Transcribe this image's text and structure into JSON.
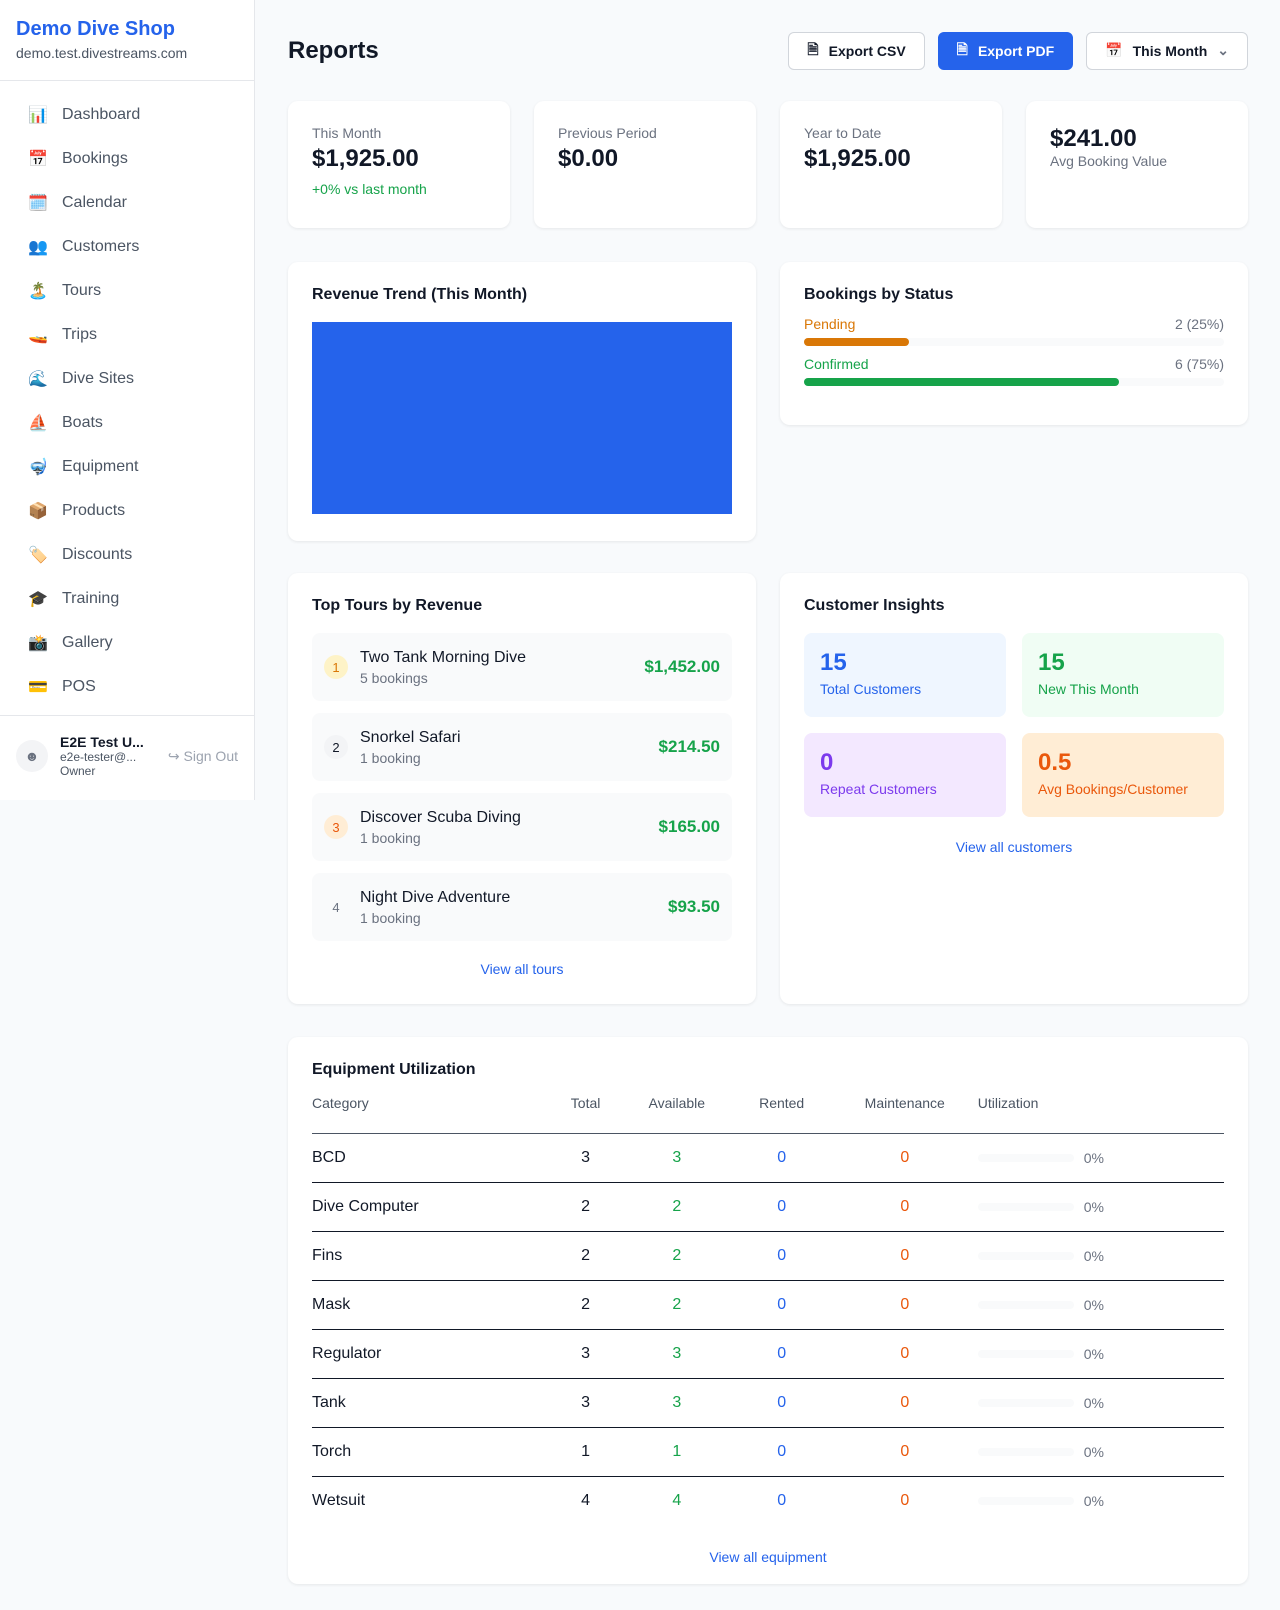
{
  "sidebar": {
    "shop_name": "Demo Dive Shop",
    "shop_url": "demo.test.divestreams.com",
    "items": [
      {
        "icon": "📊",
        "label": "Dashboard"
      },
      {
        "icon": "📅",
        "label": "Bookings"
      },
      {
        "icon": "🗓️",
        "label": "Calendar"
      },
      {
        "icon": "👥",
        "label": "Customers"
      },
      {
        "icon": "🏝️",
        "label": "Tours"
      },
      {
        "icon": "🚤",
        "label": "Trips"
      },
      {
        "icon": "🌊",
        "label": "Dive Sites"
      },
      {
        "icon": "⛵",
        "label": "Boats"
      },
      {
        "icon": "🤿",
        "label": "Equipment"
      },
      {
        "icon": "📦",
        "label": "Products"
      },
      {
        "icon": "🏷️",
        "label": "Discounts"
      },
      {
        "icon": "🎓",
        "label": "Training"
      },
      {
        "icon": "📸",
        "label": "Gallery"
      },
      {
        "icon": "💳",
        "label": "POS"
      }
    ],
    "user": {
      "name": "E2E Test U...",
      "email": "e2e-tester@...",
      "role": "Owner",
      "sign_out": "Sign Out"
    }
  },
  "header": {
    "title": "Reports",
    "export_csv": "Export CSV",
    "export_pdf": "Export PDF",
    "period": "This Month"
  },
  "stats": [
    {
      "label": "This Month",
      "value": "$1,925.00",
      "delta": "+0% vs last month"
    },
    {
      "label": "Previous Period",
      "value": "$0.00"
    },
    {
      "label": "Year to Date",
      "value": "$1,925.00"
    },
    {
      "value": "$241.00",
      "label": "Avg Booking Value"
    }
  ],
  "revenue_trend": {
    "title": "Revenue Trend (This Month)",
    "color": "#2563eb"
  },
  "bookings_status": {
    "title": "Bookings by Status",
    "items": [
      {
        "label": "Pending",
        "count": "2 (25%)",
        "percent": 25,
        "color": "#d97706"
      },
      {
        "label": "Confirmed",
        "count": "6 (75%)",
        "percent": 75,
        "color": "#16a34a"
      }
    ]
  },
  "top_tours": {
    "title": "Top Tours by Revenue",
    "items": [
      {
        "rank": "1",
        "name": "Two Tank Morning Dive",
        "bookings": "5 bookings",
        "revenue": "$1,452.00"
      },
      {
        "rank": "2",
        "name": "Snorkel Safari",
        "bookings": "1 booking",
        "revenue": "$214.50"
      },
      {
        "rank": "3",
        "name": "Discover Scuba Diving",
        "bookings": "1 booking",
        "revenue": "$165.00"
      },
      {
        "rank": "4",
        "name": "Night Dive Adventure",
        "bookings": "1 booking",
        "revenue": "$93.50"
      }
    ],
    "view_all": "View all tours"
  },
  "customer_insights": {
    "title": "Customer Insights",
    "items": [
      {
        "value": "15",
        "label": "Total Customers"
      },
      {
        "value": "15",
        "label": "New This Month"
      },
      {
        "value": "0",
        "label": "Repeat Customers"
      },
      {
        "value": "0.5",
        "label": "Avg Bookings/Customer"
      }
    ],
    "view_all": "View all customers"
  },
  "equipment": {
    "title": "Equipment Utilization",
    "columns": [
      "Category",
      "Total",
      "Available",
      "Rented",
      "Maintenance",
      "Utilization"
    ],
    "rows": [
      [
        "BCD",
        "3",
        "3",
        "0",
        "0",
        "0%"
      ],
      [
        "Dive Computer",
        "2",
        "2",
        "0",
        "0",
        "0%"
      ],
      [
        "Fins",
        "2",
        "2",
        "0",
        "0",
        "0%"
      ],
      [
        "Mask",
        "2",
        "2",
        "0",
        "0",
        "0%"
      ],
      [
        "Regulator",
        "3",
        "3",
        "0",
        "0",
        "0%"
      ],
      [
        "Tank",
        "3",
        "3",
        "0",
        "0",
        "0%"
      ],
      [
        "Torch",
        "1",
        "1",
        "0",
        "0",
        "0%"
      ],
      [
        "Wetsuit",
        "4",
        "4",
        "0",
        "0",
        "0%"
      ]
    ],
    "view_all": "View all equipment"
  }
}
